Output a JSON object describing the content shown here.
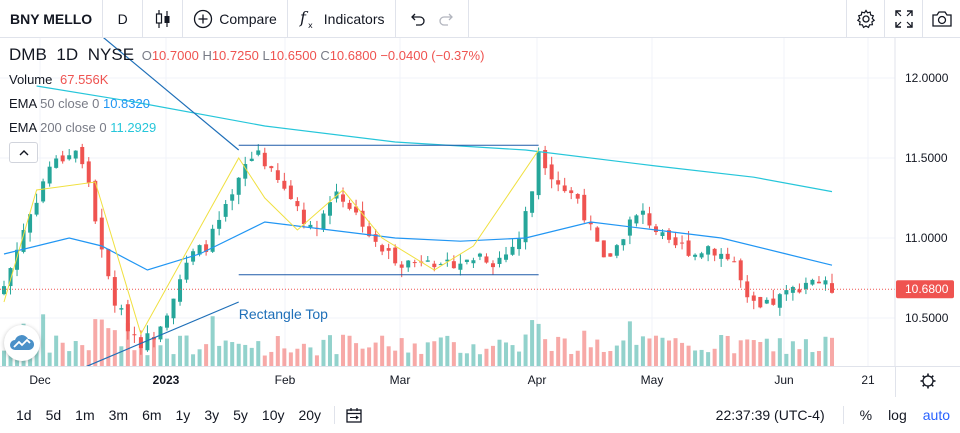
{
  "toolbar": {
    "symbol": "BNY MELLO",
    "interval": "D",
    "compare_label": "Compare",
    "indicators_label": "Indicators",
    "icons": [
      "candles-icon",
      "plus-circle-icon",
      "function-icon",
      "undo-icon",
      "redo-icon",
      "settings-icon",
      "fullscreen-icon",
      "camera-icon"
    ]
  },
  "legend": {
    "ticker": "DMB",
    "interval": "1D",
    "exchange": "NYSE",
    "o_label": "O",
    "o": "10.7000",
    "h_label": "H",
    "h": "10.7250",
    "l_label": "L",
    "l": "10.6500",
    "c_label": "C",
    "c": "10.6800",
    "change": "−0.0400 (−0.37%)",
    "volume_label": "Volume",
    "volume": "67.556K",
    "ema50_label": "EMA",
    "ema50_params": "50 close 0",
    "ema50_value": "10.8320",
    "ema200_label": "EMA",
    "ema200_params": "200 close 0",
    "ema200_value": "11.2929"
  },
  "annotation": "Rectangle Top",
  "price_axis": {
    "ticks": [
      "12.0000",
      "11.5000",
      "11.0000",
      "10.5000"
    ],
    "current_price": "10.6800"
  },
  "time_axis": {
    "labels": [
      "Dec",
      "2023",
      "Feb",
      "Mar",
      "Apr",
      "May",
      "Jun",
      "21"
    ]
  },
  "ranges": [
    "1d",
    "5d",
    "1m",
    "3m",
    "6m",
    "1y",
    "3y",
    "5y",
    "10y",
    "20y"
  ],
  "clock": "22:37:39 (UTC-4)",
  "scale_options": {
    "percent": "%",
    "log": "log",
    "auto": "auto"
  },
  "colors": {
    "up": "#26a69a",
    "down": "#ef5350",
    "ema50": "#2196f3",
    "ema200": "#26c6da",
    "pattern": "#f0e040",
    "accent": "#2962ff"
  },
  "chart_data": {
    "type": "candlestick",
    "symbol": "DMB",
    "interval": "1D",
    "ylim": [
      10.2,
      12.25
    ],
    "last_close": 10.68,
    "x_labels": [
      "Dec",
      "2023",
      "Feb",
      "Mar",
      "Apr",
      "May",
      "Jun",
      "21"
    ],
    "price_ticks": [
      12.0,
      11.5,
      11.0,
      10.5
    ],
    "close_path": [
      [
        0,
        10.7
      ],
      [
        3,
        11.05
      ],
      [
        7,
        11.45
      ],
      [
        11,
        11.55
      ],
      [
        13,
        11.35
      ],
      [
        15,
        10.9
      ],
      [
        17,
        10.6
      ],
      [
        19,
        10.45
      ],
      [
        21,
        10.35
      ],
      [
        23,
        10.4
      ],
      [
        25,
        10.55
      ],
      [
        27,
        10.75
      ],
      [
        29,
        10.9
      ],
      [
        31,
        10.95
      ],
      [
        33,
        11.1
      ],
      [
        35,
        11.25
      ],
      [
        37,
        11.45
      ],
      [
        39,
        11.55
      ],
      [
        41,
        11.4
      ],
      [
        43,
        11.3
      ],
      [
        45,
        11.2
      ],
      [
        47,
        11.05
      ],
      [
        49,
        11.15
      ],
      [
        51,
        11.3
      ],
      [
        53,
        11.2
      ],
      [
        55,
        11.1
      ],
      [
        57,
        10.95
      ],
      [
        59,
        10.9
      ],
      [
        61,
        10.85
      ],
      [
        63,
        10.85
      ],
      [
        65,
        10.9
      ],
      [
        67,
        10.8
      ],
      [
        69,
        10.85
      ],
      [
        71,
        10.85
      ],
      [
        73,
        10.9
      ],
      [
        75,
        10.85
      ],
      [
        77,
        10.9
      ],
      [
        79,
        11.0
      ],
      [
        81,
        11.3
      ],
      [
        82,
        11.55
      ],
      [
        84,
        11.4
      ],
      [
        86,
        11.3
      ],
      [
        88,
        11.25
      ],
      [
        90,
        11.05
      ],
      [
        92,
        10.85
      ],
      [
        94,
        10.95
      ],
      [
        96,
        11.1
      ],
      [
        98,
        11.15
      ],
      [
        100,
        11.05
      ],
      [
        102,
        10.95
      ],
      [
        104,
        10.95
      ],
      [
        106,
        10.9
      ],
      [
        108,
        10.95
      ],
      [
        110,
        10.9
      ],
      [
        112,
        10.85
      ],
      [
        114,
        10.6
      ],
      [
        116,
        10.55
      ],
      [
        118,
        10.6
      ],
      [
        120,
        10.65
      ],
      [
        122,
        10.7
      ],
      [
        124,
        10.75
      ],
      [
        126,
        10.7
      ],
      [
        127,
        10.68
      ]
    ],
    "ema50": [
      [
        0,
        10.9
      ],
      [
        10,
        11.0
      ],
      [
        15,
        10.95
      ],
      [
        22,
        10.8
      ],
      [
        30,
        10.9
      ],
      [
        40,
        11.1
      ],
      [
        50,
        11.05
      ],
      [
        60,
        11.0
      ],
      [
        70,
        10.98
      ],
      [
        80,
        11.0
      ],
      [
        90,
        11.1
      ],
      [
        100,
        11.05
      ],
      [
        110,
        11.0
      ],
      [
        120,
        10.9
      ],
      [
        127,
        10.83
      ]
    ],
    "ema200": [
      [
        5,
        11.95
      ],
      [
        20,
        11.85
      ],
      [
        40,
        11.7
      ],
      [
        60,
        11.6
      ],
      [
        80,
        11.55
      ],
      [
        100,
        11.45
      ],
      [
        115,
        11.38
      ],
      [
        127,
        11.29
      ]
    ],
    "rectangle": {
      "label": "Rectangle Top",
      "top": 11.58,
      "bottom": 10.77
    },
    "pattern_zigzag": [
      [
        0,
        10.6
      ],
      [
        5,
        11.3
      ],
      [
        14,
        11.35
      ],
      [
        21,
        10.4
      ],
      [
        36,
        11.5
      ],
      [
        40,
        11.25
      ],
      [
        45,
        11.05
      ],
      [
        52,
        11.3
      ],
      [
        58,
        11.0
      ],
      [
        66,
        10.8
      ],
      [
        72,
        10.95
      ],
      [
        82,
        11.55
      ]
    ],
    "trendlines": [
      {
        "from": [
          5,
          12.6
        ],
        "to": [
          36,
          11.55
        ]
      },
      {
        "from": [
          7,
          10.1
        ],
        "to": [
          36,
          10.6
        ]
      }
    ]
  }
}
